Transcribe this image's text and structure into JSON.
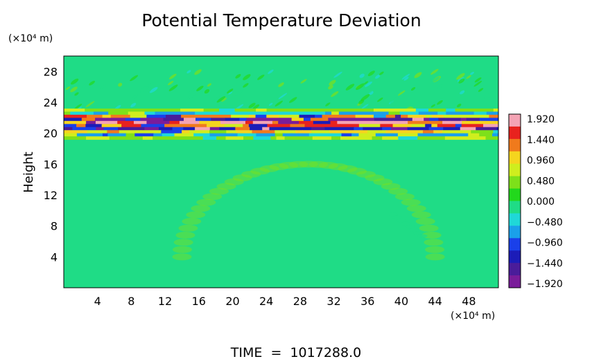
{
  "chart_data": {
    "type": "heatmap",
    "title": "Potential Temperature Deviation",
    "ylabel": "Height",
    "yunit": "(×10⁴ m)",
    "xunit": "(×10⁴ m)",
    "x_ticks": [
      "4",
      "8",
      "12",
      "16",
      "20",
      "24",
      "28",
      "32",
      "36",
      "40",
      "44",
      "48"
    ],
    "y_ticks": [
      "4",
      "8",
      "12",
      "16",
      "20",
      "24",
      "28"
    ],
    "xlim": [
      0,
      51.5
    ],
    "ylim": [
      0,
      30
    ],
    "colorbar": {
      "labels": [
        "1.920",
        "1.440",
        "0.960",
        "0.480",
        "0.000",
        "−0.480",
        "−0.960",
        "−1.440",
        "−1.920"
      ],
      "range": [
        -1.92,
        1.92
      ],
      "colors": [
        "#f4a3b4",
        "#e8221e",
        "#f07a1c",
        "#f5d51e",
        "#cfee1e",
        "#7ee01a",
        "#22d81c",
        "#1fdc86",
        "#1fd8d8",
        "#1aa0ea",
        "#1a40ea",
        "#1c1cb8",
        "#4a1c9a",
        "#7a1c9a"
      ]
    },
    "footer": "TIME  =  1017288.0",
    "background_value": 0.0,
    "features": [
      {
        "name": "stratified layer",
        "y_center": 21,
        "extent_x": [
          0,
          51.5
        ],
        "value_range": [
          -1.92,
          1.92
        ]
      },
      {
        "name": "arc disturbance",
        "y_range": [
          4,
          16
        ],
        "x_range": [
          14,
          44
        ],
        "value": 0.15
      }
    ]
  }
}
